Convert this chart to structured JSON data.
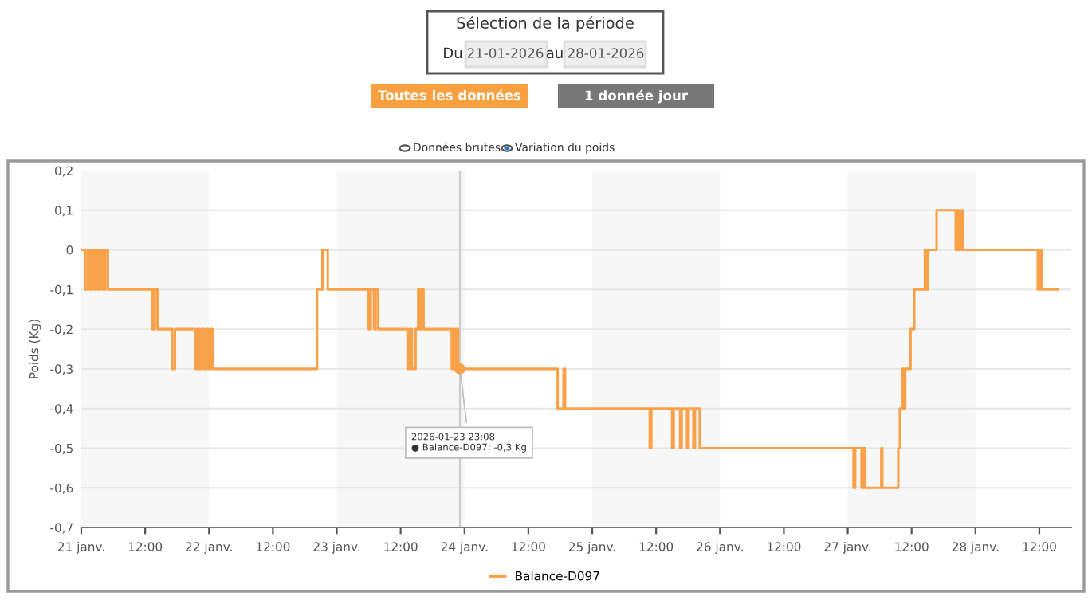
{
  "chart_data": {
    "type": "step",
    "ylabel": "Poids (Kg)",
    "x": [
      "2026-01-21T00:00",
      "2026-01-21T00:42",
      "2026-01-21T01:12",
      "2026-01-21T01:36",
      "2026-01-21T02:00",
      "2026-01-21T02:24",
      "2026-01-21T02:48",
      "2026-01-21T03:12",
      "2026-01-21T03:36",
      "2026-01-21T04:00",
      "2026-01-21T04:30",
      "2026-01-21T05:00",
      "2026-01-21T13:24",
      "2026-01-21T13:48",
      "2026-01-21T14:18",
      "2026-01-21T17:06",
      "2026-01-21T17:36",
      "2026-01-21T21:30",
      "2026-01-21T21:54",
      "2026-01-21T22:18",
      "2026-01-21T22:42",
      "2026-01-21T23:06",
      "2026-01-21T23:30",
      "2026-01-21T23:54",
      "2026-01-22T00:18",
      "2026-01-22T00:42",
      "2026-01-22T20:18",
      "2026-01-22T21:18",
      "2026-01-22T22:18",
      "2026-01-23T06:00",
      "2026-01-23T06:24",
      "2026-01-23T07:00",
      "2026-01-23T07:18",
      "2026-01-23T07:48",
      "2026-01-23T13:18",
      "2026-01-23T13:42",
      "2026-01-23T14:06",
      "2026-01-23T14:48",
      "2026-01-23T15:18",
      "2026-01-23T15:36",
      "2026-01-23T15:54",
      "2026-01-23T16:18",
      "2026-01-23T21:36",
      "2026-01-23T21:54",
      "2026-01-23T22:12",
      "2026-01-23T22:30",
      "2026-01-23T22:48",
      "2026-01-24T17:30",
      "2026-01-24T18:36",
      "2026-01-24T18:54",
      "2026-01-25T10:48",
      "2026-01-25T11:06",
      "2026-01-25T15:00",
      "2026-01-25T15:18",
      "2026-01-25T16:30",
      "2026-01-25T16:48",
      "2026-01-25T17:48",
      "2026-01-25T18:06",
      "2026-01-25T19:00",
      "2026-01-25T19:18",
      "2026-01-25T20:12",
      "2026-01-27T01:06",
      "2026-01-27T01:24",
      "2026-01-27T02:36",
      "2026-01-27T02:54",
      "2026-01-27T03:18",
      "2026-01-27T06:18",
      "2026-01-27T06:30",
      "2026-01-27T09:30",
      "2026-01-27T09:48",
      "2026-01-27T10:12",
      "2026-01-27T10:30",
      "2026-01-27T10:48",
      "2026-01-27T11:48",
      "2026-01-27T12:30",
      "2026-01-27T14:30",
      "2026-01-27T14:48",
      "2026-01-27T15:06",
      "2026-01-27T16:42",
      "2026-01-27T20:18",
      "2026-01-27T20:36",
      "2026-01-27T20:54",
      "2026-01-27T21:12",
      "2026-01-27T21:36",
      "2026-01-28T11:42",
      "2026-01-28T12:00",
      "2026-01-28T12:24",
      "2026-01-28T15:24"
    ],
    "series": [
      {
        "name": "Balance-D097",
        "color": "#f9a148",
        "values": [
          0,
          -0.1,
          0,
          -0.1,
          0,
          -0.1,
          0,
          -0.1,
          0,
          -0.1,
          0,
          -0.1,
          -0.2,
          -0.1,
          -0.2,
          -0.3,
          -0.2,
          -0.3,
          -0.2,
          -0.3,
          -0.2,
          -0.3,
          -0.2,
          -0.3,
          -0.2,
          -0.3,
          -0.1,
          0,
          -0.1,
          -0.2,
          -0.1,
          -0.2,
          -0.1,
          -0.2,
          -0.3,
          -0.2,
          -0.3,
          -0.2,
          -0.1,
          -0.2,
          -0.1,
          -0.2,
          -0.3,
          -0.2,
          -0.3,
          -0.2,
          -0.3,
          -0.4,
          -0.3,
          -0.4,
          -0.5,
          -0.4,
          -0.5,
          -0.4,
          -0.5,
          -0.4,
          -0.5,
          -0.4,
          -0.5,
          -0.4,
          -0.5,
          -0.6,
          -0.5,
          -0.6,
          -0.5,
          -0.6,
          -0.5,
          -0.6,
          -0.5,
          -0.4,
          -0.3,
          -0.4,
          -0.3,
          -0.2,
          -0.1,
          0,
          -0.1,
          0,
          0.1,
          0,
          0.1,
          0,
          0.1,
          0,
          -0.1,
          0,
          -0.1,
          -0.1
        ]
      }
    ],
    "xlim": [
      "2026-01-21T00:00",
      "2026-01-28T18:00"
    ],
    "xticks": [
      {
        "value": "2026-01-21",
        "label": "21 janv."
      },
      {
        "value": "2026-01-21T12:00",
        "label": "12:00"
      },
      {
        "value": "2026-01-22",
        "label": "22 janv."
      },
      {
        "value": "2026-01-22T12:00",
        "label": "12:00"
      },
      {
        "value": "2026-01-23",
        "label": "23 janv."
      },
      {
        "value": "2026-01-23T12:00",
        "label": "12:00"
      },
      {
        "value": "2026-01-24",
        "label": "24 janv."
      },
      {
        "value": "2026-01-24T12:00",
        "label": "12:00"
      },
      {
        "value": "2026-01-25",
        "label": "25 janv."
      },
      {
        "value": "2026-01-25T12:00",
        "label": "12:00"
      },
      {
        "value": "2026-01-26",
        "label": "26 janv."
      },
      {
        "value": "2026-01-26T12:00",
        "label": "12:00"
      },
      {
        "value": "2026-01-27",
        "label": "27 janv."
      },
      {
        "value": "2026-01-27T12:00",
        "label": "12:00"
      },
      {
        "value": "2026-01-28",
        "label": "28 janv."
      },
      {
        "value": "2026-01-28T12:00",
        "label": "12:00"
      }
    ],
    "ylim": [
      -0.7,
      0.2
    ],
    "yticks": [
      {
        "value": -0.7,
        "label": "-0,7"
      },
      {
        "value": -0.6,
        "label": "-0,6"
      },
      {
        "value": -0.5,
        "label": "-0,5"
      },
      {
        "value": -0.4,
        "label": "-0,4"
      },
      {
        "value": -0.3,
        "label": "-0,3"
      },
      {
        "value": -0.2,
        "label": "-0,2"
      },
      {
        "value": -0.1,
        "label": "-0,1"
      },
      0,
      {
        "value": 0.1,
        "label": "0,1"
      },
      {
        "value": 0.2,
        "label": "0,2"
      }
    ],
    "grid": "y",
    "legend": "bottom",
    "line_style": "solid",
    "marker": "none",
    "bands": [
      {
        "axis": "x",
        "from": "2026-01-21",
        "to": "2026-01-22",
        "color": "#f7f7f7"
      },
      {
        "axis": "x",
        "from": "2026-01-23",
        "to": "2026-01-24",
        "color": "#f7f7f7"
      },
      {
        "axis": "x",
        "from": "2026-01-25",
        "to": "2026-01-26",
        "color": "#f7f7f7"
      },
      {
        "axis": "x",
        "from": "2026-01-27",
        "to": "2026-01-28",
        "color": "#f7f7f7"
      }
    ],
    "ref_lines": [
      {
        "axis": "x",
        "value": "2026-01-23T23:08",
        "color": "#cccccc"
      }
    ],
    "annotations": [
      "Sélection de la période",
      "Du",
      "21-01-2026",
      "au",
      "28-01-2026",
      "Toutes les données",
      "1 donnée jour",
      "Données brutes",
      "Variation du poids",
      {
        "text": "2026-01-23 23:08\n● Balance-D097: -0,3 Kg",
        "x": "2026-01-23T23:08",
        "y": -0.3
      }
    ]
  }
}
